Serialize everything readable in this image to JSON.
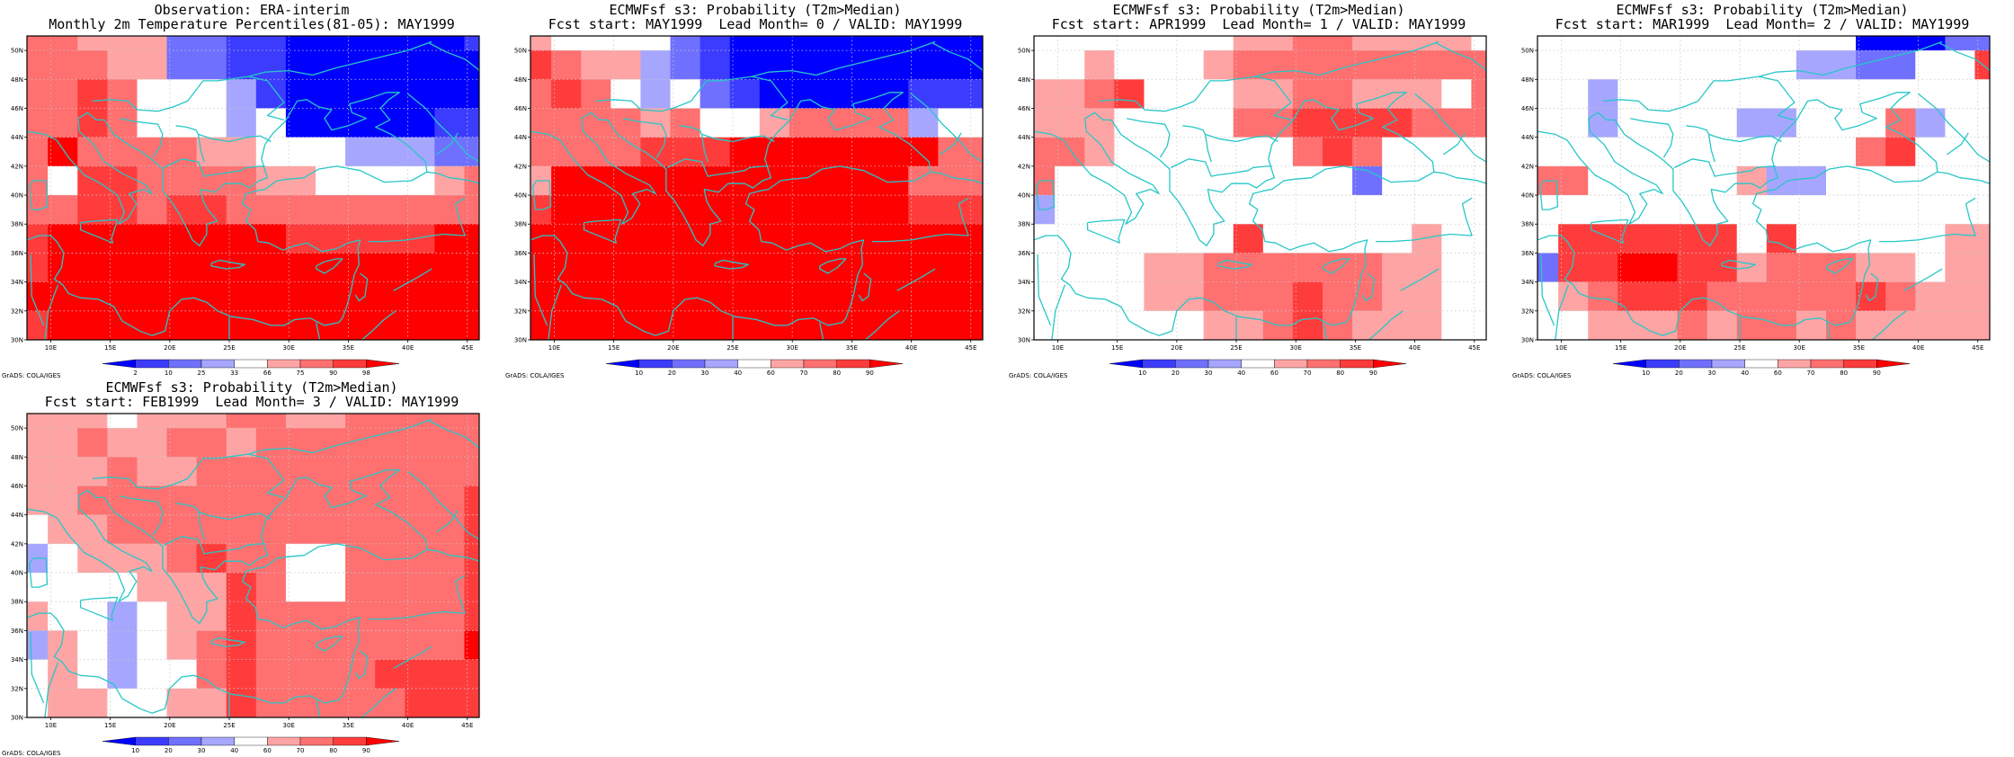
{
  "colors": {
    "scale_fills": [
      "#0000ff",
      "#3c3cff",
      "#7070ff",
      "#a6a6ff",
      "#ffffff",
      "#ffa4a4",
      "#ff7070",
      "#ff3c3c",
      "#ff0000"
    ],
    "grid": "#c8c8c8",
    "coast": "#26c7c7"
  },
  "axes": {
    "x_ticks": [
      "10E",
      "15E",
      "20E",
      "25E",
      "30E",
      "35E",
      "40E",
      "45E"
    ],
    "x_values": [
      10,
      15,
      20,
      25,
      30,
      35,
      40,
      45
    ],
    "y_ticks": [
      "30N",
      "32N",
      "34N",
      "36N",
      "38N",
      "40N",
      "42N",
      "44N",
      "46N",
      "48N",
      "50N"
    ],
    "y_values": [
      30,
      32,
      34,
      36,
      38,
      40,
      42,
      44,
      46,
      48,
      50
    ],
    "xlim": [
      8,
      46
    ],
    "ylim": [
      30,
      51
    ]
  },
  "panels": [
    {
      "title1": "Observation: ERA-interim",
      "title2": "Monthly 2m Temperature Percentiles(81-05): MAY1999",
      "credit": "GrADS: COLA/IGES",
      "colorbar_labels": [
        "2",
        "10",
        "25",
        "33",
        "66",
        "75",
        "90",
        "98"
      ],
      "chart_data": {
        "type": "heatmap",
        "x": [
          8.5,
          11,
          13.5,
          16,
          18.5,
          21,
          23.5,
          26,
          28.5,
          31,
          33.5,
          36,
          38.5,
          41,
          43.5,
          46
        ],
        "y": [
          51,
          49,
          47,
          45,
          43,
          41,
          39,
          37,
          35,
          33,
          31
        ],
        "grid": [
          [
            6,
            6,
            5,
            5,
            5,
            2,
            2,
            1,
            1,
            0,
            0,
            0,
            0,
            0,
            0,
            1
          ],
          [
            6,
            6,
            6,
            5,
            5,
            2,
            2,
            1,
            1,
            0,
            0,
            0,
            0,
            0,
            0,
            0
          ],
          [
            6,
            6,
            7,
            6,
            4,
            4,
            4,
            3,
            1,
            0,
            0,
            0,
            0,
            0,
            0,
            0
          ],
          [
            6,
            6,
            7,
            6,
            4,
            4,
            4,
            3,
            4,
            0,
            0,
            0,
            0,
            0,
            1,
            1
          ],
          [
            6,
            8,
            6,
            6,
            6,
            6,
            5,
            5,
            4,
            4,
            4,
            3,
            3,
            3,
            2,
            2
          ],
          [
            6,
            4,
            7,
            7,
            6,
            6,
            6,
            6,
            5,
            5,
            4,
            4,
            4,
            4,
            5,
            6
          ],
          [
            6,
            6,
            7,
            7,
            6,
            7,
            7,
            6,
            6,
            6,
            6,
            6,
            6,
            6,
            6,
            6
          ],
          [
            7,
            8,
            8,
            8,
            8,
            8,
            8,
            8,
            8,
            7,
            7,
            7,
            7,
            7,
            8,
            8
          ],
          [
            7,
            8,
            8,
            8,
            8,
            8,
            8,
            8,
            8,
            8,
            8,
            8,
            8,
            8,
            8,
            8
          ],
          [
            8,
            8,
            8,
            8,
            8,
            8,
            8,
            8,
            8,
            8,
            8,
            8,
            8,
            8,
            8,
            8
          ],
          [
            7,
            8,
            8,
            8,
            8,
            8,
            8,
            8,
            8,
            8,
            8,
            8,
            8,
            8,
            8,
            8
          ]
        ]
      }
    },
    {
      "title1": "ECMWFsf s3: Probability (T2m>Median)",
      "title2": "Fcst start: MAY1999  Lead Month= 0 / VALID: MAY1999",
      "credit": "GrADS: COLA/IGES",
      "colorbar_labels": [
        "10",
        "20",
        "30",
        "40",
        "60",
        "70",
        "80",
        "90"
      ],
      "chart_data": {
        "type": "heatmap",
        "x": [
          8.5,
          11,
          13.5,
          16,
          18.5,
          21,
          23.5,
          26,
          28.5,
          31,
          33.5,
          36,
          38.5,
          41,
          43.5,
          46
        ],
        "y": [
          51,
          49,
          47,
          45,
          43,
          41,
          39,
          37,
          35,
          33,
          31
        ],
        "grid": [
          [
            5,
            4,
            4,
            4,
            4,
            2,
            1,
            0,
            0,
            0,
            0,
            0,
            0,
            0,
            0,
            0
          ],
          [
            7,
            6,
            5,
            5,
            3,
            2,
            1,
            0,
            0,
            0,
            0,
            0,
            0,
            0,
            0,
            0
          ],
          [
            6,
            7,
            6,
            4,
            3,
            4,
            2,
            1,
            0,
            0,
            0,
            0,
            0,
            1,
            1,
            1
          ],
          [
            6,
            6,
            6,
            6,
            5,
            6,
            4,
            4,
            5,
            6,
            6,
            6,
            6,
            3,
            4,
            4
          ],
          [
            6,
            6,
            6,
            6,
            7,
            7,
            7,
            8,
            8,
            8,
            8,
            8,
            8,
            8,
            6,
            6
          ],
          [
            5,
            8,
            8,
            8,
            8,
            8,
            8,
            8,
            8,
            8,
            8,
            8,
            8,
            6,
            6,
            6
          ],
          [
            7,
            8,
            8,
            8,
            8,
            8,
            8,
            8,
            8,
            8,
            8,
            8,
            8,
            7,
            7,
            7
          ],
          [
            8,
            8,
            8,
            8,
            8,
            8,
            8,
            8,
            8,
            8,
            8,
            8,
            8,
            8,
            8,
            8
          ],
          [
            8,
            8,
            8,
            8,
            8,
            8,
            8,
            8,
            8,
            8,
            8,
            8,
            8,
            8,
            8,
            8
          ],
          [
            8,
            8,
            8,
            8,
            8,
            8,
            8,
            8,
            8,
            8,
            8,
            8,
            8,
            8,
            8,
            8
          ],
          [
            8,
            8,
            8,
            8,
            8,
            8,
            8,
            8,
            8,
            8,
            8,
            8,
            8,
            8,
            8,
            8
          ]
        ]
      }
    },
    {
      "title1": "ECMWFsf s3: Probability (T2m>Median)",
      "title2": "Fcst start: APR1999  Lead Month= 1 / VALID: MAY1999",
      "credit": "GrADS: COLA/IGES",
      "colorbar_labels": [
        "10",
        "20",
        "30",
        "40",
        "60",
        "70",
        "80",
        "90"
      ],
      "chart_data": {
        "type": "heatmap",
        "x": [
          8.5,
          11,
          13.5,
          16,
          18.5,
          21,
          23.5,
          26,
          28.5,
          31,
          33.5,
          36,
          38.5,
          41,
          43.5,
          46
        ],
        "y": [
          51,
          49,
          47,
          45,
          43,
          41,
          39,
          37,
          35,
          33,
          31
        ],
        "grid": [
          [
            4,
            4,
            4,
            4,
            4,
            4,
            4,
            5,
            5,
            6,
            6,
            5,
            5,
            5,
            5,
            4
          ],
          [
            4,
            4,
            5,
            4,
            4,
            4,
            5,
            6,
            6,
            6,
            6,
            6,
            6,
            6,
            6,
            6
          ],
          [
            5,
            5,
            6,
            7,
            4,
            4,
            4,
            5,
            5,
            6,
            6,
            5,
            5,
            5,
            4,
            6
          ],
          [
            5,
            5,
            5,
            4,
            4,
            4,
            4,
            6,
            6,
            7,
            7,
            7,
            7,
            6,
            6,
            6
          ],
          [
            6,
            6,
            5,
            4,
            4,
            4,
            4,
            4,
            4,
            6,
            7,
            6,
            4,
            4,
            4,
            4
          ],
          [
            6,
            4,
            4,
            4,
            4,
            4,
            4,
            4,
            4,
            4,
            4,
            2,
            4,
            4,
            4,
            4
          ],
          [
            3,
            4,
            4,
            4,
            4,
            4,
            4,
            4,
            4,
            4,
            4,
            4,
            4,
            4,
            4,
            4
          ],
          [
            4,
            4,
            4,
            4,
            4,
            4,
            4,
            7,
            4,
            4,
            4,
            4,
            4,
            5,
            4,
            4
          ],
          [
            4,
            4,
            4,
            4,
            5,
            5,
            6,
            6,
            6,
            6,
            6,
            6,
            5,
            5,
            4,
            4
          ],
          [
            4,
            4,
            4,
            4,
            5,
            5,
            6,
            6,
            6,
            7,
            6,
            6,
            5,
            5,
            4,
            4
          ],
          [
            4,
            4,
            4,
            4,
            4,
            4,
            5,
            5,
            6,
            7,
            6,
            5,
            5,
            5,
            4,
            4
          ]
        ]
      }
    },
    {
      "title1": "ECMWFsf s3: Probability (T2m>Median)",
      "title2": "Fcst start: MAR1999  Lead Month= 2 / VALID: MAY1999",
      "credit": "GrADS: COLA/IGES",
      "colorbar_labels": [
        "10",
        "20",
        "30",
        "40",
        "60",
        "70",
        "80",
        "90"
      ],
      "chart_data": {
        "type": "heatmap",
        "x": [
          8.5,
          11,
          13.5,
          16,
          18.5,
          21,
          23.5,
          26,
          28.5,
          31,
          33.5,
          36,
          38.5,
          41,
          43.5,
          46
        ],
        "y": [
          51,
          49,
          47,
          45,
          43,
          41,
          39,
          37,
          35,
          33,
          31
        ],
        "grid": [
          [
            4,
            4,
            4,
            4,
            4,
            4,
            4,
            4,
            4,
            4,
            4,
            0,
            0,
            0,
            2,
            2
          ],
          [
            4,
            4,
            4,
            4,
            4,
            4,
            4,
            4,
            4,
            3,
            3,
            2,
            2,
            4,
            4,
            7
          ],
          [
            4,
            4,
            3,
            4,
            4,
            4,
            4,
            4,
            4,
            4,
            4,
            4,
            4,
            4,
            4,
            4
          ],
          [
            4,
            4,
            3,
            4,
            4,
            4,
            4,
            3,
            3,
            4,
            4,
            4,
            6,
            3,
            4,
            4
          ],
          [
            4,
            4,
            4,
            4,
            4,
            4,
            4,
            4,
            4,
            4,
            4,
            6,
            7,
            4,
            4,
            4
          ],
          [
            6,
            6,
            4,
            4,
            4,
            4,
            4,
            5,
            3,
            3,
            4,
            4,
            4,
            4,
            4,
            4
          ],
          [
            4,
            4,
            4,
            4,
            4,
            4,
            4,
            4,
            4,
            4,
            4,
            4,
            4,
            4,
            4,
            4
          ],
          [
            4,
            7,
            7,
            7,
            7,
            7,
            7,
            4,
            7,
            4,
            4,
            4,
            4,
            4,
            5,
            5
          ],
          [
            2,
            7,
            7,
            8,
            8,
            7,
            7,
            5,
            6,
            6,
            6,
            5,
            5,
            4,
            5,
            5
          ],
          [
            4,
            5,
            6,
            7,
            7,
            7,
            6,
            6,
            6,
            6,
            6,
            7,
            6,
            5,
            5,
            5
          ],
          [
            4,
            4,
            5,
            5,
            5,
            6,
            5,
            6,
            6,
            5,
            6,
            5,
            5,
            5,
            5,
            5
          ]
        ]
      }
    },
    {
      "title1": "ECMWFsf s3: Probability (T2m>Median)",
      "title2": "Fcst start: FEB1999  Lead Month= 3 / VALID: MAY1999",
      "credit": "GrADS: COLA/IGES",
      "colorbar_labels": [
        "10",
        "20",
        "30",
        "40",
        "60",
        "70",
        "80",
        "90"
      ],
      "chart_data": {
        "type": "heatmap",
        "x": [
          8.5,
          11,
          13.5,
          16,
          18.5,
          21,
          23.5,
          26,
          28.5,
          31,
          33.5,
          36,
          38.5,
          41,
          43.5,
          46
        ],
        "y": [
          51,
          49,
          47,
          45,
          43,
          41,
          39,
          37,
          35,
          33,
          31
        ],
        "grid": [
          [
            5,
            5,
            5,
            4,
            5,
            5,
            5,
            6,
            6,
            5,
            5,
            6,
            6,
            6,
            6,
            6
          ],
          [
            5,
            5,
            6,
            5,
            5,
            6,
            6,
            5,
            6,
            6,
            6,
            6,
            6,
            6,
            6,
            6
          ],
          [
            5,
            5,
            5,
            6,
            5,
            5,
            6,
            6,
            6,
            6,
            6,
            6,
            6,
            6,
            6,
            6
          ],
          [
            5,
            5,
            6,
            6,
            6,
            6,
            6,
            6,
            6,
            6,
            6,
            6,
            6,
            6,
            6,
            7
          ],
          [
            4,
            5,
            5,
            6,
            6,
            6,
            6,
            6,
            6,
            6,
            6,
            6,
            6,
            6,
            6,
            7
          ],
          [
            3,
            4,
            5,
            5,
            5,
            6,
            7,
            6,
            6,
            4,
            4,
            6,
            6,
            6,
            6,
            7
          ],
          [
            4,
            4,
            4,
            4,
            5,
            5,
            5,
            7,
            6,
            4,
            4,
            6,
            6,
            6,
            6,
            7
          ],
          [
            5,
            4,
            4,
            3,
            4,
            5,
            5,
            7,
            6,
            6,
            6,
            6,
            6,
            6,
            6,
            7
          ],
          [
            3,
            5,
            4,
            3,
            4,
            5,
            6,
            7,
            6,
            6,
            6,
            6,
            6,
            6,
            6,
            8
          ],
          [
            4,
            5,
            4,
            3,
            4,
            4,
            6,
            7,
            6,
            6,
            6,
            6,
            7,
            7,
            7,
            7
          ],
          [
            4,
            5,
            5,
            4,
            4,
            5,
            5,
            7,
            6,
            6,
            6,
            6,
            6,
            7,
            7,
            7
          ]
        ]
      }
    }
  ]
}
